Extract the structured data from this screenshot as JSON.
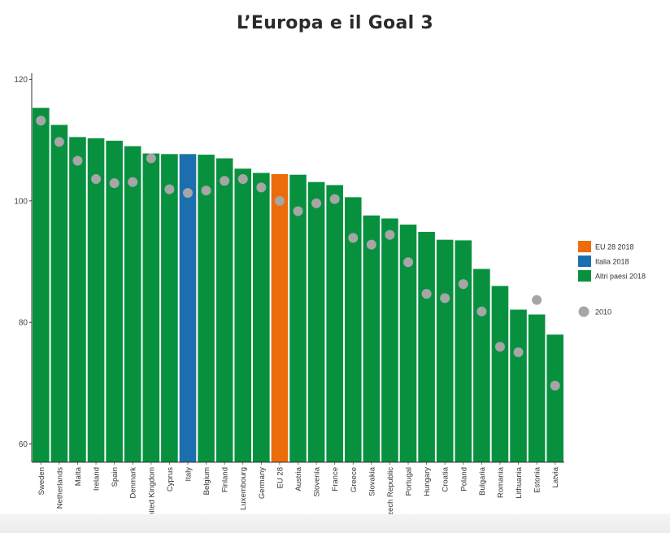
{
  "chart_data": {
    "type": "bar",
    "title": "L’Europa e il Goal 3",
    "xlabel": "",
    "ylabel": "",
    "ylim": [
      57,
      121
    ],
    "yticks": [
      60,
      80,
      100,
      120
    ],
    "grid": false,
    "legend_placement": "right",
    "categories": [
      "Sweden",
      "Netherlands",
      "Malta",
      "Ireland",
      "Spain",
      "Denmark",
      "United Kingdom",
      "Cyprus",
      "Italy",
      "Belgium",
      "Finland",
      "Luxembourg",
      "Germany",
      "EU 28",
      "Austria",
      "Slovenia",
      "France",
      "Greece",
      "Slovakia",
      "Czech Republic",
      "Portugal",
      "Hungary",
      "Croatia",
      "Poland",
      "Bulgaria",
      "Romania",
      "Lithuania",
      "Estonia",
      "Latvia"
    ],
    "series": [
      {
        "name": "2018",
        "values": [
          115.3,
          112.5,
          110.5,
          110.3,
          109.9,
          109.0,
          107.8,
          107.7,
          107.7,
          107.6,
          107.0,
          105.3,
          104.6,
          104.4,
          104.3,
          103.1,
          102.6,
          100.6,
          97.6,
          97.1,
          96.1,
          94.9,
          93.6,
          93.5,
          88.8,
          86.0,
          82.1,
          81.3,
          78.0
        ],
        "categories_group": [
          "Altri paesi 2018",
          "Altri paesi 2018",
          "Altri paesi 2018",
          "Altri paesi 2018",
          "Altri paesi 2018",
          "Altri paesi 2018",
          "Altri paesi 2018",
          "Altri paesi 2018",
          "Italia 2018",
          "Altri paesi 2018",
          "Altri paesi 2018",
          "Altri paesi 2018",
          "Altri paesi 2018",
          "EU 28 2018",
          "Altri paesi 2018",
          "Altri paesi 2018",
          "Altri paesi 2018",
          "Altri paesi 2018",
          "Altri paesi 2018",
          "Altri paesi 2018",
          "Altri paesi 2018",
          "Altri paesi 2018",
          "Altri paesi 2018",
          "Altri paesi 2018",
          "Altri paesi 2018",
          "Altri paesi 2018",
          "Altri paesi 2018",
          "Altri paesi 2018",
          "Altri paesi 2018"
        ]
      },
      {
        "name": "2010",
        "values": [
          113.2,
          109.7,
          106.6,
          103.6,
          102.9,
          103.1,
          107.0,
          101.9,
          101.3,
          101.7,
          103.3,
          103.6,
          102.2,
          100.0,
          98.3,
          99.6,
          100.3,
          93.9,
          92.8,
          94.4,
          89.9,
          84.7,
          84.0,
          86.3,
          81.8,
          76.0,
          75.1,
          83.7,
          69.6
        ]
      }
    ],
    "legend": [
      {
        "label": "EU 28 2018",
        "color": "#ec6c0c",
        "shape": "square"
      },
      {
        "label": "Italia 2018",
        "color": "#1c6fae",
        "shape": "square"
      },
      {
        "label": "Altri paesi 2018",
        "color": "#07913f",
        "shape": "square"
      },
      {
        "label": "2010",
        "color": "#a6a6a6",
        "shape": "circle"
      }
    ],
    "colors": {
      "EU 28 2018": "#ec6c0c",
      "Italia 2018": "#1c6fae",
      "Altri paesi 2018": "#07913f",
      "2010": "#a6a6a6"
    }
  }
}
